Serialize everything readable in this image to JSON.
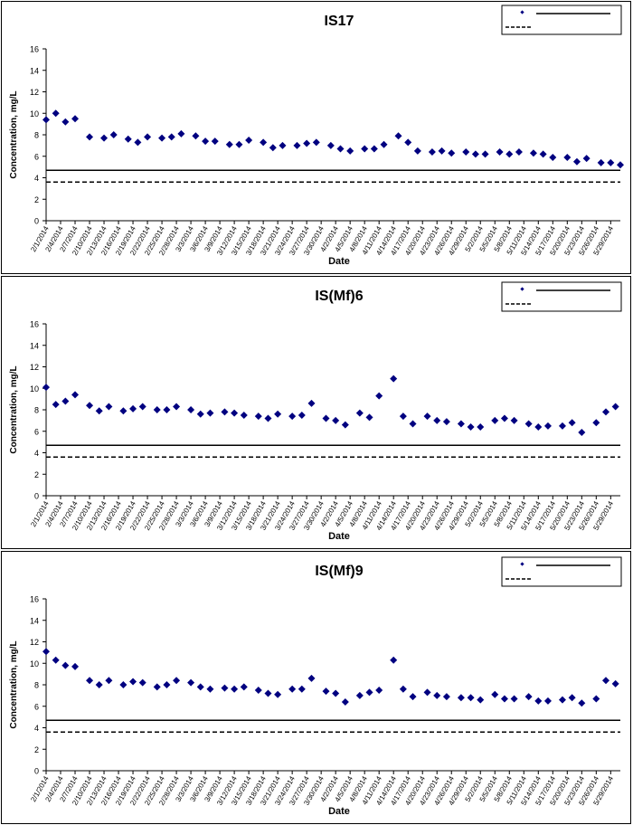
{
  "chart_data": [
    {
      "type": "scatter",
      "title": "IS17",
      "xlabel": "Date",
      "ylabel": "Concentration, mg/L",
      "ylim": [
        0,
        16
      ],
      "yticks": [
        "0",
        "2",
        "4",
        "6",
        "8",
        "10",
        "12",
        "14",
        "16"
      ],
      "x_tick_labels": [
        "2/1/2014",
        "2/4/2014",
        "2/7/2014",
        "2/10/2014",
        "2/13/2014",
        "2/16/2014",
        "2/19/2014",
        "2/22/2014",
        "2/25/2014",
        "2/28/2014",
        "3/3/2014",
        "3/6/2014",
        "3/9/2014",
        "3/12/2014",
        "3/15/2014",
        "3/18/2014",
        "3/21/2014",
        "3/24/2014",
        "3/27/2014",
        "3/30/2014",
        "4/2/2014",
        "4/5/2014",
        "4/8/2014",
        "4/11/2014",
        "4/14/2014",
        "4/17/2014",
        "4/20/2014",
        "4/23/2014",
        "4/26/2014",
        "4/29/2014",
        "5/2/2014",
        "5/5/2014",
        "5/8/2014",
        "5/11/2014",
        "5/14/2014",
        "5/17/2014",
        "5/20/2014",
        "5/23/2014",
        "5/26/2014",
        "5/29/2014"
      ],
      "grid": false,
      "legend_position": "top-right",
      "reference_lines": [
        {
          "value": 4.7,
          "style": "solid"
        },
        {
          "value": 3.6,
          "style": "dashed"
        }
      ],
      "series": [
        {
          "marker": "diamond",
          "color": "#000080",
          "points": [
            {
              "x": "2/1/2014",
              "y": 9.4
            },
            {
              "x": "2/3/2014",
              "y": 10.0
            },
            {
              "x": "2/5/2014",
              "y": 9.2
            },
            {
              "x": "2/7/2014",
              "y": 9.5
            },
            {
              "x": "2/10/2014",
              "y": 7.8
            },
            {
              "x": "2/13/2014",
              "y": 7.7
            },
            {
              "x": "2/15/2014",
              "y": 8.0
            },
            {
              "x": "2/18/2014",
              "y": 7.6
            },
            {
              "x": "2/20/2014",
              "y": 7.3
            },
            {
              "x": "2/22/2014",
              "y": 7.8
            },
            {
              "x": "2/25/2014",
              "y": 7.7
            },
            {
              "x": "2/27/2014",
              "y": 7.8
            },
            {
              "x": "3/1/2014",
              "y": 8.1
            },
            {
              "x": "3/4/2014",
              "y": 7.9
            },
            {
              "x": "3/6/2014",
              "y": 7.4
            },
            {
              "x": "3/8/2014",
              "y": 7.4
            },
            {
              "x": "3/11/2014",
              "y": 7.1
            },
            {
              "x": "3/13/2014",
              "y": 7.1
            },
            {
              "x": "3/15/2014",
              "y": 7.5
            },
            {
              "x": "3/18/2014",
              "y": 7.3
            },
            {
              "x": "3/20/2014",
              "y": 6.8
            },
            {
              "x": "3/22/2014",
              "y": 7.0
            },
            {
              "x": "3/25/2014",
              "y": 7.0
            },
            {
              "x": "3/27/2014",
              "y": 7.2
            },
            {
              "x": "3/29/2014",
              "y": 7.3
            },
            {
              "x": "4/1/2014",
              "y": 7.0
            },
            {
              "x": "4/3/2014",
              "y": 6.7
            },
            {
              "x": "4/5/2014",
              "y": 6.5
            },
            {
              "x": "4/8/2014",
              "y": 6.7
            },
            {
              "x": "4/10/2014",
              "y": 6.7
            },
            {
              "x": "4/12/2014",
              "y": 7.1
            },
            {
              "x": "4/15/2014",
              "y": 7.9
            },
            {
              "x": "4/17/2014",
              "y": 7.3
            },
            {
              "x": "4/19/2014",
              "y": 6.5
            },
            {
              "x": "4/22/2014",
              "y": 6.4
            },
            {
              "x": "4/24/2014",
              "y": 6.5
            },
            {
              "x": "4/26/2014",
              "y": 6.3
            },
            {
              "x": "4/29/2014",
              "y": 6.4
            },
            {
              "x": "5/1/2014",
              "y": 6.2
            },
            {
              "x": "5/3/2014",
              "y": 6.2
            },
            {
              "x": "5/6/2014",
              "y": 6.4
            },
            {
              "x": "5/8/2014",
              "y": 6.2
            },
            {
              "x": "5/10/2014",
              "y": 6.4
            },
            {
              "x": "5/13/2014",
              "y": 6.3
            },
            {
              "x": "5/15/2014",
              "y": 6.2
            },
            {
              "x": "5/17/2014",
              "y": 5.9
            },
            {
              "x": "5/20/2014",
              "y": 5.9
            },
            {
              "x": "5/22/2014",
              "y": 5.5
            },
            {
              "x": "5/24/2014",
              "y": 5.8
            },
            {
              "x": "5/27/2014",
              "y": 5.4
            },
            {
              "x": "5/29/2014",
              "y": 5.4
            },
            {
              "x": "5/31/2014",
              "y": 5.2
            }
          ]
        }
      ]
    },
    {
      "type": "scatter",
      "title": "IS(Mf)6",
      "xlabel": "Date",
      "ylabel": "Concentration, mg/L",
      "ylim": [
        0,
        16
      ],
      "yticks": [
        "0",
        "2",
        "4",
        "6",
        "8",
        "10",
        "12",
        "14",
        "16"
      ],
      "x_tick_labels": [
        "2/1/2014",
        "2/4/2014",
        "2/7/2014",
        "2/10/2014",
        "2/13/2014",
        "2/16/2014",
        "2/19/2014",
        "2/22/2014",
        "2/25/2014",
        "2/28/2014",
        "3/3/2014",
        "3/6/2014",
        "3/9/2014",
        "3/12/2014",
        "3/15/2014",
        "3/18/2014",
        "3/21/2014",
        "3/24/2014",
        "3/27/2014",
        "3/30/2014",
        "4/2/2014",
        "4/5/2014",
        "4/8/2014",
        "4/11/2014",
        "4/14/2014",
        "4/17/2014",
        "4/20/2014",
        "4/23/2014",
        "4/26/2014",
        "4/29/2014",
        "5/2/2014",
        "5/5/2014",
        "5/8/2014",
        "5/11/2014",
        "5/14/2014",
        "5/17/2014",
        "5/20/2014",
        "5/23/2014",
        "5/26/2014",
        "5/29/2014"
      ],
      "grid": false,
      "legend_position": "top-right",
      "reference_lines": [
        {
          "value": 4.7,
          "style": "solid"
        },
        {
          "value": 3.6,
          "style": "dashed"
        }
      ],
      "series": [
        {
          "marker": "diamond",
          "color": "#000080",
          "points": [
            {
              "x": "2/1/2014",
              "y": 10.1
            },
            {
              "x": "2/3/2014",
              "y": 8.5
            },
            {
              "x": "2/5/2014",
              "y": 8.8
            },
            {
              "x": "2/7/2014",
              "y": 9.4
            },
            {
              "x": "2/10/2014",
              "y": 8.4
            },
            {
              "x": "2/12/2014",
              "y": 7.9
            },
            {
              "x": "2/14/2014",
              "y": 8.3
            },
            {
              "x": "2/17/2014",
              "y": 7.9
            },
            {
              "x": "2/19/2014",
              "y": 8.1
            },
            {
              "x": "2/21/2014",
              "y": 8.3
            },
            {
              "x": "2/24/2014",
              "y": 8.0
            },
            {
              "x": "2/26/2014",
              "y": 8.0
            },
            {
              "x": "2/28/2014",
              "y": 8.3
            },
            {
              "x": "3/3/2014",
              "y": 8.0
            },
            {
              "x": "3/5/2014",
              "y": 7.6
            },
            {
              "x": "3/7/2014",
              "y": 7.7
            },
            {
              "x": "3/10/2014",
              "y": 7.8
            },
            {
              "x": "3/12/2014",
              "y": 7.7
            },
            {
              "x": "3/14/2014",
              "y": 7.5
            },
            {
              "x": "3/17/2014",
              "y": 7.4
            },
            {
              "x": "3/19/2014",
              "y": 7.2
            },
            {
              "x": "3/21/2014",
              "y": 7.6
            },
            {
              "x": "3/24/2014",
              "y": 7.4
            },
            {
              "x": "3/26/2014",
              "y": 7.5
            },
            {
              "x": "3/28/2014",
              "y": 8.6
            },
            {
              "x": "3/31/2014",
              "y": 7.2
            },
            {
              "x": "4/2/2014",
              "y": 7.0
            },
            {
              "x": "4/4/2014",
              "y": 6.6
            },
            {
              "x": "4/7/2014",
              "y": 7.7
            },
            {
              "x": "4/9/2014",
              "y": 7.3
            },
            {
              "x": "4/11/2014",
              "y": 9.3
            },
            {
              "x": "4/14/2014",
              "y": 10.9
            },
            {
              "x": "4/16/2014",
              "y": 7.4
            },
            {
              "x": "4/18/2014",
              "y": 6.7
            },
            {
              "x": "4/21/2014",
              "y": 7.4
            },
            {
              "x": "4/23/2014",
              "y": 7.0
            },
            {
              "x": "4/25/2014",
              "y": 6.9
            },
            {
              "x": "4/28/2014",
              "y": 6.7
            },
            {
              "x": "4/30/2014",
              "y": 6.4
            },
            {
              "x": "5/2/2014",
              "y": 6.4
            },
            {
              "x": "5/5/2014",
              "y": 7.0
            },
            {
              "x": "5/7/2014",
              "y": 7.2
            },
            {
              "x": "5/9/2014",
              "y": 7.0
            },
            {
              "x": "5/12/2014",
              "y": 6.7
            },
            {
              "x": "5/14/2014",
              "y": 6.4
            },
            {
              "x": "5/16/2014",
              "y": 6.5
            },
            {
              "x": "5/19/2014",
              "y": 6.5
            },
            {
              "x": "5/21/2014",
              "y": 6.8
            },
            {
              "x": "5/23/2014",
              "y": 5.9
            },
            {
              "x": "5/26/2014",
              "y": 6.8
            },
            {
              "x": "5/28/2014",
              "y": 7.8
            },
            {
              "x": "5/30/2014",
              "y": 8.3
            }
          ]
        }
      ]
    },
    {
      "type": "scatter",
      "title": "IS(Mf)9",
      "xlabel": "Date",
      "ylabel": "Concentration, mg/L",
      "ylim": [
        0,
        16
      ],
      "yticks": [
        "0",
        "2",
        "4",
        "6",
        "8",
        "10",
        "12",
        "14",
        "16"
      ],
      "x_tick_labels": [
        "2/1/2014",
        "2/4/2014",
        "2/7/2014",
        "2/10/2014",
        "2/13/2014",
        "2/16/2014",
        "2/19/2014",
        "2/22/2014",
        "2/25/2014",
        "2/28/2014",
        "3/3/2014",
        "3/6/2014",
        "3/9/2014",
        "3/12/2014",
        "3/15/2014",
        "3/18/2014",
        "3/21/2014",
        "3/24/2014",
        "3/27/2014",
        "3/30/2014",
        "4/2/2014",
        "4/5/2014",
        "4/8/2014",
        "4/11/2014",
        "4/14/2014",
        "4/17/2014",
        "4/20/2014",
        "4/23/2014",
        "4/26/2014",
        "4/29/2014",
        "5/2/2014",
        "5/5/2014",
        "5/8/2014",
        "5/11/2014",
        "5/14/2014",
        "5/17/2014",
        "5/20/2014",
        "5/23/2014",
        "5/26/2014",
        "5/29/2014"
      ],
      "grid": false,
      "legend_position": "top-right",
      "reference_lines": [
        {
          "value": 4.7,
          "style": "solid"
        },
        {
          "value": 3.6,
          "style": "dashed"
        }
      ],
      "series": [
        {
          "marker": "diamond",
          "color": "#000080",
          "points": [
            {
              "x": "2/1/2014",
              "y": 11.1
            },
            {
              "x": "2/3/2014",
              "y": 10.3
            },
            {
              "x": "2/5/2014",
              "y": 9.8
            },
            {
              "x": "2/7/2014",
              "y": 9.7
            },
            {
              "x": "2/10/2014",
              "y": 8.4
            },
            {
              "x": "2/12/2014",
              "y": 8.0
            },
            {
              "x": "2/14/2014",
              "y": 8.4
            },
            {
              "x": "2/17/2014",
              "y": 8.0
            },
            {
              "x": "2/19/2014",
              "y": 8.3
            },
            {
              "x": "2/21/2014",
              "y": 8.2
            },
            {
              "x": "2/24/2014",
              "y": 7.8
            },
            {
              "x": "2/26/2014",
              "y": 8.0
            },
            {
              "x": "2/28/2014",
              "y": 8.4
            },
            {
              "x": "3/3/2014",
              "y": 8.2
            },
            {
              "x": "3/5/2014",
              "y": 7.8
            },
            {
              "x": "3/7/2014",
              "y": 7.6
            },
            {
              "x": "3/10/2014",
              "y": 7.7
            },
            {
              "x": "3/12/2014",
              "y": 7.6
            },
            {
              "x": "3/14/2014",
              "y": 7.8
            },
            {
              "x": "3/17/2014",
              "y": 7.5
            },
            {
              "x": "3/19/2014",
              "y": 7.2
            },
            {
              "x": "3/21/2014",
              "y": 7.1
            },
            {
              "x": "3/24/2014",
              "y": 7.6
            },
            {
              "x": "3/26/2014",
              "y": 7.6
            },
            {
              "x": "3/28/2014",
              "y": 8.6
            },
            {
              "x": "3/31/2014",
              "y": 7.4
            },
            {
              "x": "4/2/2014",
              "y": 7.2
            },
            {
              "x": "4/4/2014",
              "y": 6.4
            },
            {
              "x": "4/7/2014",
              "y": 7.0
            },
            {
              "x": "4/9/2014",
              "y": 7.3
            },
            {
              "x": "4/11/2014",
              "y": 7.5
            },
            {
              "x": "4/14/2014",
              "y": 10.3
            },
            {
              "x": "4/16/2014",
              "y": 7.6
            },
            {
              "x": "4/18/2014",
              "y": 6.9
            },
            {
              "x": "4/21/2014",
              "y": 7.3
            },
            {
              "x": "4/23/2014",
              "y": 7.0
            },
            {
              "x": "4/25/2014",
              "y": 6.9
            },
            {
              "x": "4/28/2014",
              "y": 6.8
            },
            {
              "x": "4/30/2014",
              "y": 6.8
            },
            {
              "x": "5/2/2014",
              "y": 6.6
            },
            {
              "x": "5/5/2014",
              "y": 7.1
            },
            {
              "x": "5/7/2014",
              "y": 6.7
            },
            {
              "x": "5/9/2014",
              "y": 6.7
            },
            {
              "x": "5/12/2014",
              "y": 6.9
            },
            {
              "x": "5/14/2014",
              "y": 6.5
            },
            {
              "x": "5/16/2014",
              "y": 6.5
            },
            {
              "x": "5/19/2014",
              "y": 6.6
            },
            {
              "x": "5/21/2014",
              "y": 6.8
            },
            {
              "x": "5/23/2014",
              "y": 6.3
            },
            {
              "x": "5/26/2014",
              "y": 6.7
            },
            {
              "x": "5/28/2014",
              "y": 8.4
            },
            {
              "x": "5/30/2014",
              "y": 8.1
            }
          ]
        }
      ]
    }
  ]
}
